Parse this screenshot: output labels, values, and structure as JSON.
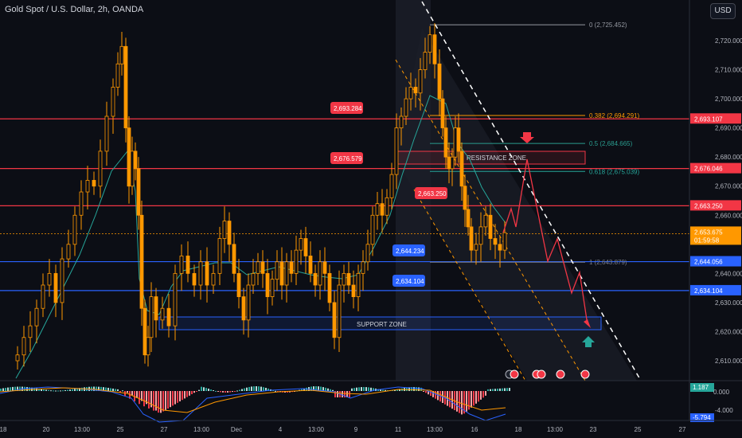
{
  "header": {
    "title": "Gold Spot / U.S. Dollar, 2h, OANDA",
    "currency": "USD"
  },
  "price_axis": {
    "ticks": [
      "2,720.000",
      "2,710.000",
      "2,700.000",
      "2,690.000",
      "2,680.000",
      "2,670.000",
      "2,660.000",
      "2,640.000",
      "2,630.000",
      "2,620.000",
      "2,610.000"
    ],
    "tick_values": [
      2720,
      2710,
      2700,
      2690,
      2680,
      2670,
      2660,
      2640,
      2630,
      2620,
      2610
    ]
  },
  "time_axis": {
    "labels": [
      "18",
      "20",
      "13:00",
      "25",
      "27",
      "13:00",
      "Dec",
      "4",
      "13:00",
      "9",
      "11",
      "13:00",
      "16",
      "18",
      "13:00",
      "23",
      "25",
      "27"
    ]
  },
  "price_tags": [
    {
      "label": "2,693.107",
      "value": 2693.107,
      "color": "#f23645"
    },
    {
      "label": "2,676.046",
      "value": 2676.046,
      "color": "#f23645"
    },
    {
      "label": "2,663.250",
      "value": 2663.25,
      "color": "#f23645"
    },
    {
      "label": "2,653.675",
      "value": 2653.675,
      "color": "#ff9800"
    },
    {
      "label": "01:59:58",
      "value": 2651.3,
      "color": "#ff9800"
    },
    {
      "label": "2,644.056",
      "value": 2644.056,
      "color": "#2962ff"
    },
    {
      "label": "2,634.104",
      "value": 2634.104,
      "color": "#2962ff"
    }
  ],
  "line_tags": [
    {
      "label": "2,693.284",
      "color": "#f23645"
    },
    {
      "label": "2,676.579",
      "color": "#f23645"
    },
    {
      "label": "2,663.250",
      "color": "#f23645"
    },
    {
      "label": "2,644.234",
      "color": "#2962ff"
    },
    {
      "label": "2,634.104",
      "color": "#2962ff"
    }
  ],
  "fib_levels": [
    {
      "label": "0 (2,725.452)",
      "value": 2725.452,
      "color": "#9598a1"
    },
    {
      "label": "0.382 (2,694.291)",
      "value": 2694.291,
      "color": "#ff9800"
    },
    {
      "label": "0.5 (2,684.665)",
      "value": 2684.665,
      "color": "#2a9d8f"
    },
    {
      "label": "0.618 (2,675.039)",
      "value": 2675.039,
      "color": "#26a69a"
    },
    {
      "label": "1 (2,643.879)",
      "value": 2643.879,
      "color": "#787b86"
    }
  ],
  "zones": {
    "resistance": "RESISTANCE ZONE",
    "support": "SUPPORT ZONE"
  },
  "indicator": {
    "value_tag": "1.187",
    "zero_tag": "0.000",
    "ticks": [
      "-4.000"
    ],
    "min_tag": "-5.794"
  },
  "colors": {
    "background": "#0c0e15",
    "candle": "#ff9800",
    "resistance": "#f23645",
    "support": "#2962ff",
    "ma": "#26a69a"
  }
}
